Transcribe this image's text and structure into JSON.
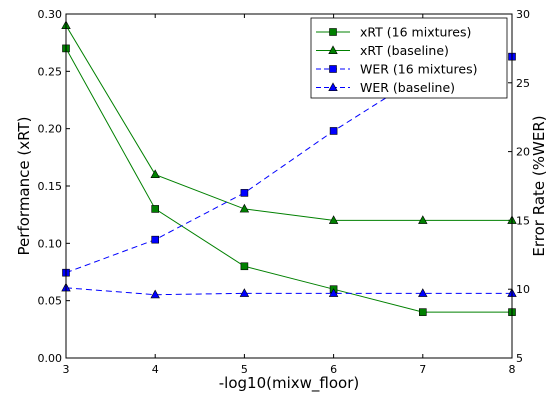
{
  "chart_data": {
    "type": "line",
    "xlabel": "-log10(mixw_floor)",
    "ylabel_left": "Performance (xRT)",
    "ylabel_right": "Error Rate (%WER)",
    "xlim": [
      3,
      8
    ],
    "ylim_left": [
      0,
      0.3
    ],
    "ylim_right": [
      5,
      30
    ],
    "x_ticks": [
      "3",
      "4",
      "5",
      "6",
      "7",
      "8"
    ],
    "y_left_ticks": [
      "0.00",
      "0.05",
      "0.10",
      "0.15",
      "0.20",
      "0.25",
      "0.30"
    ],
    "y_right_ticks": [
      "5",
      "10",
      "15",
      "20",
      "25",
      "30"
    ],
    "grid": false,
    "legend_position": "top-right",
    "series": [
      {
        "name": "xRT (16 mixtures)",
        "axis": "left",
        "color": "#008000",
        "linestyle": "solid",
        "marker": "square",
        "x": [
          3,
          4,
          5,
          6,
          7,
          8
        ],
        "y": [
          0.27,
          0.13,
          0.08,
          0.06,
          0.04,
          0.04
        ]
      },
      {
        "name": "xRT (baseline)",
        "axis": "left",
        "color": "#008000",
        "linestyle": "solid",
        "marker": "triangle",
        "x": [
          3,
          4,
          5,
          6,
          7,
          8
        ],
        "y": [
          0.29,
          0.16,
          0.13,
          0.12,
          0.12,
          0.12
        ]
      },
      {
        "name": "WER (16 mixtures)",
        "axis": "right",
        "color": "#0000ff",
        "linestyle": "dashed",
        "marker": "square",
        "x": [
          3,
          4,
          5,
          6,
          7,
          8
        ],
        "y": [
          11.2,
          13.6,
          17.0,
          21.5,
          25.6,
          26.9
        ]
      },
      {
        "name": "WER (baseline)",
        "axis": "right",
        "color": "#0000ff",
        "linestyle": "dashed",
        "marker": "triangle",
        "x": [
          3,
          4,
          5,
          6,
          7,
          8
        ],
        "y": [
          10.1,
          9.6,
          9.7,
          9.7,
          9.7,
          9.7
        ]
      }
    ]
  }
}
